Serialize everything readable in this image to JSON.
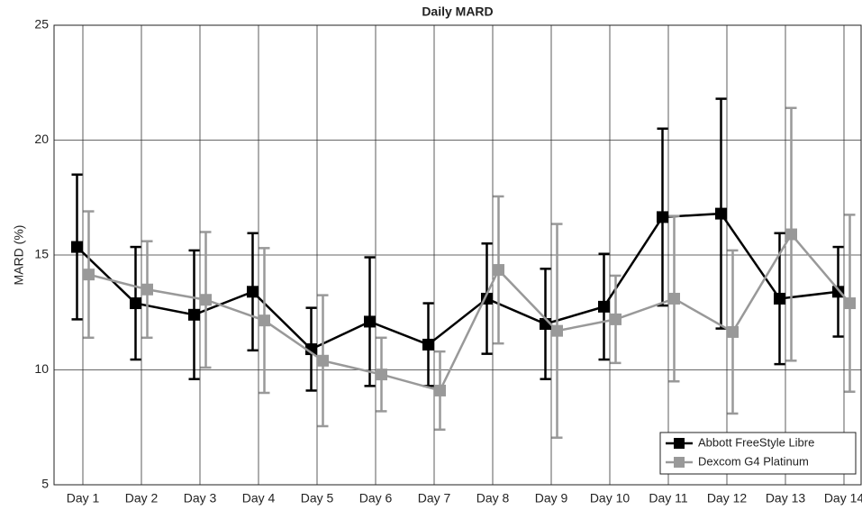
{
  "chart_data": {
    "type": "line-errorbar",
    "title": "Daily MARD",
    "ylabel": "MARD (%)",
    "categories": [
      "Day 1",
      "Day 2",
      "Day 3",
      "Day 4",
      "Day 5",
      "Day 6",
      "Day 7",
      "Day 8",
      "Day 9",
      "Day 10",
      "Day 11",
      "Day 12",
      "Day 13",
      "Day 14"
    ],
    "series": [
      {
        "name": "Abbott FreeStyle Libre",
        "color": "#000000",
        "values": [
          15.35,
          12.9,
          12.4,
          13.4,
          10.9,
          12.1,
          11.1,
          13.1,
          12.0,
          12.75,
          16.65,
          16.8,
          13.1,
          13.4
        ],
        "errors": [
          3.15,
          2.45,
          2.8,
          2.55,
          1.8,
          2.8,
          1.8,
          2.4,
          2.4,
          2.3,
          3.85,
          5.0,
          2.85,
          1.95
        ]
      },
      {
        "name": "Dexcom G4 Platinum",
        "color": "#999999",
        "values": [
          14.15,
          13.5,
          13.05,
          12.15,
          10.4,
          9.8,
          9.1,
          14.35,
          11.7,
          12.2,
          13.1,
          11.65,
          15.9,
          12.9
        ],
        "errors": [
          2.75,
          2.1,
          2.95,
          3.15,
          2.85,
          1.6,
          1.7,
          3.2,
          4.65,
          1.9,
          3.6,
          3.55,
          5.5,
          3.85
        ]
      }
    ],
    "ylim": [
      5,
      25
    ],
    "yticks": [
      5,
      10,
      15,
      20,
      25
    ],
    "grid": true,
    "legend": "lower right"
  }
}
